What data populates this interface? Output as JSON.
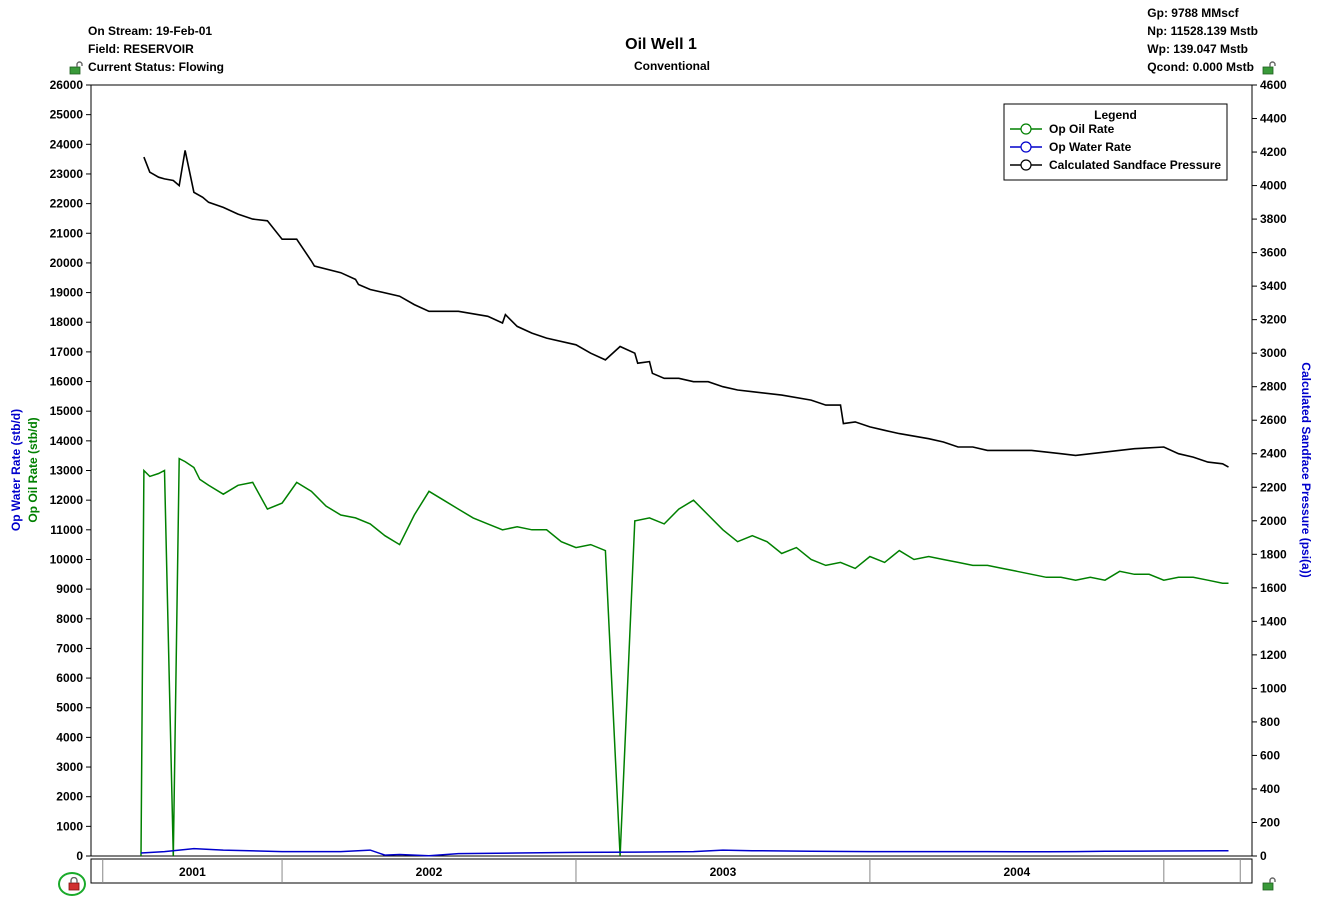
{
  "header_left": {
    "on_stream": "On Stream: 19-Feb-01",
    "field": "Field: RESERVOIR",
    "status": "Current Status: Flowing"
  },
  "header_right": {
    "gp": "Gp: 9788 MMscf",
    "np": "Np: 11528.139 Mstb",
    "wp": "Wp: 139.047 Mstb",
    "qcond": "Qcond: 0.000 Mstb"
  },
  "icons": [
    "unlock-icon",
    "unlock-icon",
    "lock-icon",
    "unlock-icon"
  ],
  "chart_data": {
    "type": "line",
    "title": "Oil Well 1",
    "subtitle": "Conventional",
    "y_left_labels": [
      {
        "text": "Op Water Rate (stb/d)",
        "color": "#0000CC"
      },
      {
        "text": "Op Oil Rate (stb/d)",
        "color": "#008000"
      }
    ],
    "y_right_label": "Calculated Sandface Pressure (psi(a))",
    "y_left_range": [
      0,
      26000
    ],
    "y_left_ticks": [
      0,
      1000,
      2000,
      3000,
      4000,
      5000,
      6000,
      7000,
      8000,
      9000,
      10000,
      11000,
      12000,
      13000,
      14000,
      15000,
      16000,
      17000,
      18000,
      19000,
      20000,
      21000,
      22000,
      23000,
      24000,
      25000,
      26000
    ],
    "y_right_range": [
      0,
      4600
    ],
    "y_right_ticks": [
      0,
      200,
      400,
      600,
      800,
      1000,
      1200,
      1400,
      1600,
      1800,
      2000,
      2200,
      2400,
      2600,
      2800,
      3000,
      3200,
      3400,
      3600,
      3800,
      4000,
      4200,
      4400,
      4600
    ],
    "x_range": [
      2000.35,
      2004.3
    ],
    "x_year_boundaries": [
      2000.39,
      2001.0,
      2002.0,
      2003.0,
      2004.0,
      2004.26
    ],
    "x_year_labels": [
      {
        "label": "2001",
        "x": 2001.0
      },
      {
        "label": "2002",
        "x": 2002.0
      },
      {
        "label": "2003",
        "x": 2003.0
      },
      {
        "label": "2004",
        "x": 2004.0
      }
    ],
    "legend": {
      "title": "Legend",
      "position": "top-right",
      "items": [
        {
          "name": "Op Oil Rate",
          "color": "#008000"
        },
        {
          "name": "Op Water Rate",
          "color": "#0000CC"
        },
        {
          "name": "Calculated Sandface Pressure",
          "color": "#000000"
        }
      ]
    },
    "series": [
      {
        "name": "Calculated Sandface Pressure",
        "axis": "right",
        "color": "#000000",
        "x": [
          2000.53,
          2000.55,
          2000.56,
          2000.58,
          2000.6,
          2000.63,
          2000.65,
          2000.67,
          2000.7,
          2000.73,
          2000.75,
          2000.8,
          2000.85,
          2000.9,
          2000.95,
          2001.0,
          2001.05,
          2001.1,
          2001.11,
          2001.2,
          2001.25,
          2001.26,
          2001.3,
          2001.4,
          2001.45,
          2001.5,
          2001.6,
          2001.7,
          2001.75,
          2001.76,
          2001.8,
          2001.85,
          2001.9,
          2002.0,
          2002.05,
          2002.1,
          2002.15,
          2002.2,
          2002.21,
          2002.25,
          2002.26,
          2002.3,
          2002.35,
          2002.4,
          2002.45,
          2002.5,
          2002.55,
          2002.6,
          2002.7,
          2002.8,
          2002.85,
          2002.9,
          2002.91,
          2002.95,
          2003.0,
          2003.05,
          2003.1,
          2003.2,
          2003.25,
          2003.3,
          2003.35,
          2003.4,
          2003.45,
          2003.55,
          2003.6,
          2003.65,
          2003.7,
          2003.8,
          2003.9,
          2004.0,
          2004.05,
          2004.1,
          2004.15,
          2004.2,
          2004.22
        ],
        "y": [
          4170,
          4080,
          4070,
          4050,
          4040,
          4030,
          4000,
          4210,
          3960,
          3930,
          3900,
          3870,
          3830,
          3800,
          3790,
          3680,
          3680,
          3550,
          3520,
          3480,
          3440,
          3410,
          3380,
          3340,
          3290,
          3250,
          3250,
          3220,
          3180,
          3230,
          3160,
          3120,
          3090,
          3050,
          3000,
          2960,
          3040,
          3000,
          2940,
          2950,
          2880,
          2850,
          2850,
          2830,
          2830,
          2800,
          2780,
          2770,
          2750,
          2720,
          2690,
          2690,
          2580,
          2590,
          2560,
          2540,
          2520,
          2490,
          2470,
          2440,
          2440,
          2420,
          2420,
          2420,
          2410,
          2400,
          2390,
          2410,
          2430,
          2440,
          2400,
          2380,
          2350,
          2340,
          2320
        ]
      },
      {
        "name": "Op Oil Rate",
        "axis": "left",
        "color": "#008000",
        "x": [
          2000.52,
          2000.53,
          2000.55,
          2000.58,
          2000.6,
          2000.63,
          2000.65,
          2000.67,
          2000.7,
          2000.72,
          2000.75,
          2000.8,
          2000.85,
          2000.9,
          2000.95,
          2001.0,
          2001.05,
          2001.1,
          2001.15,
          2001.2,
          2001.25,
          2001.3,
          2001.35,
          2001.4,
          2001.45,
          2001.5,
          2001.55,
          2001.6,
          2001.65,
          2001.7,
          2001.75,
          2001.8,
          2001.85,
          2001.9,
          2001.95,
          2002.0,
          2002.05,
          2002.1,
          2002.15,
          2002.2,
          2002.25,
          2002.3,
          2002.35,
          2002.4,
          2002.45,
          2002.5,
          2002.55,
          2002.6,
          2002.65,
          2002.7,
          2002.75,
          2002.8,
          2002.85,
          2002.9,
          2002.95,
          2003.0,
          2003.05,
          2003.1,
          2003.15,
          2003.2,
          2003.25,
          2003.3,
          2003.35,
          2003.4,
          2003.45,
          2003.5,
          2003.55,
          2003.6,
          2003.65,
          2003.7,
          2003.75,
          2003.8,
          2003.85,
          2003.9,
          2003.95,
          2004.0,
          2004.05,
          2004.1,
          2004.15,
          2004.2,
          2004.22
        ],
        "y": [
          0,
          13000,
          12800,
          12900,
          13000,
          0,
          13400,
          13300,
          13100,
          12700,
          12500,
          12200,
          12500,
          12600,
          11700,
          11900,
          12600,
          12300,
          11800,
          11500,
          11400,
          11200,
          10800,
          10500,
          11500,
          12300,
          12000,
          11700,
          11400,
          11200,
          11000,
          11100,
          11000,
          11000,
          10600,
          10400,
          10500,
          10300,
          0,
          11300,
          11400,
          11200,
          11700,
          12000,
          11500,
          11000,
          10600,
          10800,
          10600,
          10200,
          10400,
          10000,
          9800,
          9900,
          9700,
          10100,
          9900,
          10300,
          10000,
          10100,
          10000,
          9900,
          9800,
          9800,
          9700,
          9600,
          9500,
          9400,
          9400,
          9300,
          9400,
          9300,
          9600,
          9500,
          9500,
          9300,
          9400,
          9400,
          9300,
          9200,
          9200
        ]
      },
      {
        "name": "Op Water Rate",
        "axis": "left",
        "color": "#0000CC",
        "x": [
          2000.52,
          2000.6,
          2000.7,
          2000.8,
          2001.0,
          2001.2,
          2001.3,
          2001.35,
          2001.4,
          2001.5,
          2001.6,
          2001.8,
          2002.0,
          2002.2,
          2002.4,
          2002.5,
          2002.6,
          2002.8,
          2003.0,
          2003.2,
          2003.4,
          2003.6,
          2003.7,
          2003.8,
          2004.0,
          2004.2,
          2004.22
        ],
        "y": [
          100,
          150,
          250,
          200,
          150,
          150,
          200,
          30,
          50,
          10,
          80,
          100,
          120,
          130,
          150,
          200,
          180,
          160,
          150,
          150,
          150,
          140,
          150,
          160,
          170,
          180,
          180
        ]
      }
    ]
  }
}
